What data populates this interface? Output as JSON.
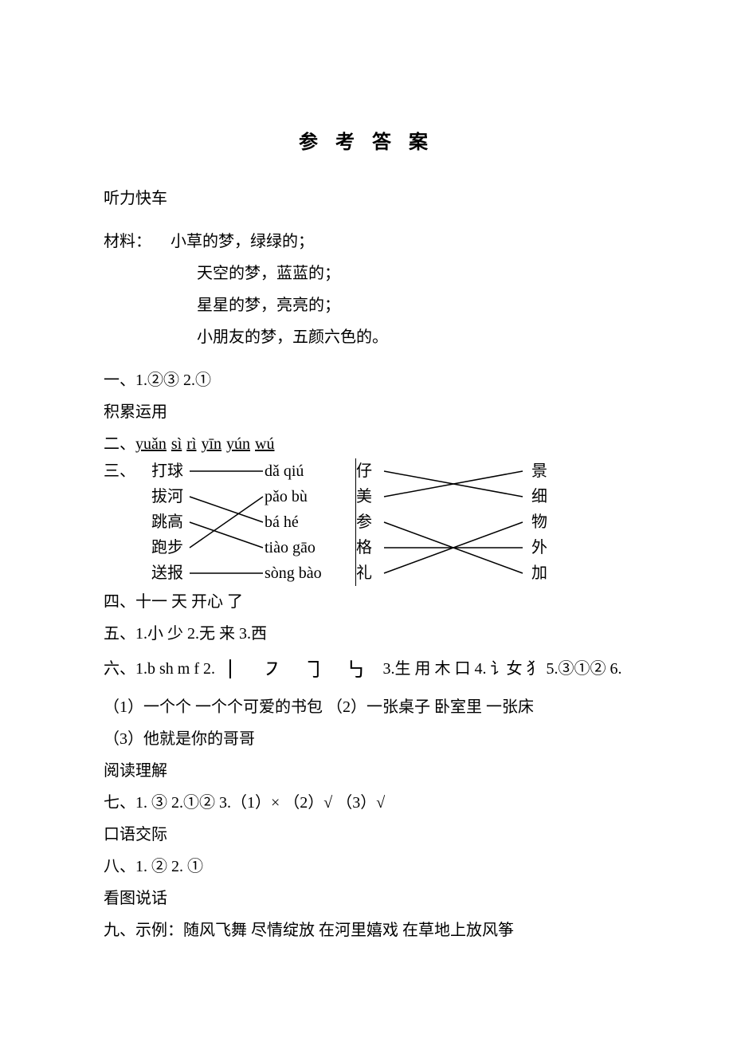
{
  "title": "参 考 答 案",
  "sections": {
    "listening_header": "听力快车",
    "material_label": "材料：",
    "material_lines": [
      "小草的梦，绿绿的；",
      "天空的梦，蓝蓝的；",
      "星星的梦，亮亮的；",
      "小朋友的梦，五颜六色的。"
    ],
    "q1": "一、1.②③   2.①",
    "accum_header": "积累运用",
    "q2_label": "二、",
    "q2_pinyin": [
      "yuǎn",
      "sì",
      "rì",
      "yīn",
      "yún",
      "wú"
    ],
    "q3_label": "三、",
    "match_a_left": [
      "打球",
      "拔河",
      "跳高",
      "跑步",
      "送报"
    ],
    "match_a_right": [
      "dǎ    qiú",
      "pǎo   bù",
      "bá    hé",
      "tiào   gāo",
      "sòng   bào"
    ],
    "match_b_left": [
      "仔",
      "美",
      "参",
      "格",
      "礼"
    ],
    "match_b_right": [
      "景",
      "细",
      "物",
      "外",
      "加"
    ],
    "q4": "四、十一   天    开心    了",
    "q5": "五、1.小 少   2.无 来   3.西",
    "q6_a": "六、1.b sh m f   2.",
    "q6_strokes": "丨 ㇇ ㇆ ㇉",
    "q6_b": "   3.生 用 木 口   4. 讠女 犭 5.③①②   6.",
    "q6_sub1": "（1）一个个  一个个可爱的书包    （2）一张桌子  卧室里   一张床",
    "q6_sub2": "（3）他就是你的哥哥",
    "reading_header": "阅读理解",
    "q7": "七、1. ③   2.①②   3.（1）×  （2）√  （3）√",
    "oral_header": "口语交际",
    "q8": "八、1. ②   2. ①",
    "picture_header": "看图说话",
    "q9": "九、示例：随风飞舞  尽情绽放  在河里嬉戏  在草地上放风筝"
  },
  "match_lines_a": [
    [
      0,
      0
    ],
    [
      1,
      2
    ],
    [
      2,
      3
    ],
    [
      3,
      1
    ],
    [
      4,
      4
    ]
  ],
  "match_lines_b": [
    [
      0,
      1
    ],
    [
      1,
      0
    ],
    [
      2,
      4
    ],
    [
      3,
      3
    ],
    [
      4,
      2
    ]
  ],
  "style": {
    "text_color": "#000000",
    "background": "#ffffff",
    "body_fontsize": 20,
    "title_fontsize": 24,
    "line_stroke": "#000000",
    "line_width": 1.5
  }
}
